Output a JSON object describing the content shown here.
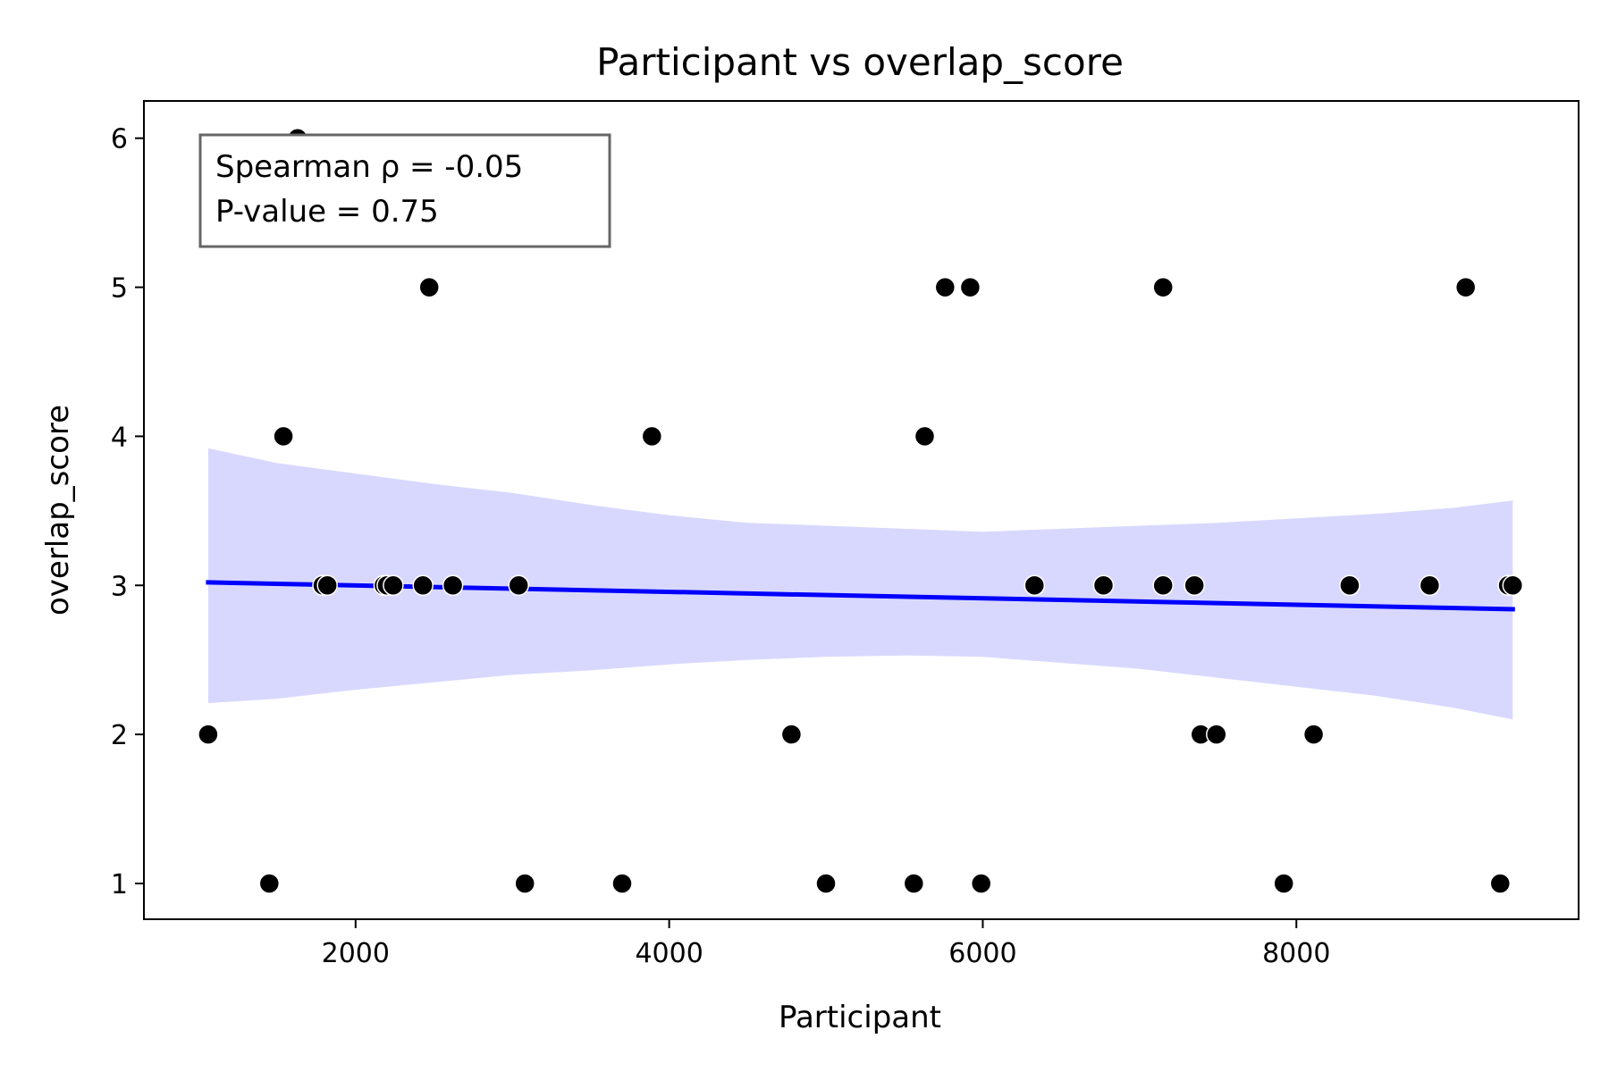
{
  "chart_data": {
    "type": "scatter",
    "title": "Participant vs overlap_score",
    "xlabel": "Participant",
    "ylabel": "overlap_score",
    "xlim": [
      650,
      9800
    ],
    "ylim": [
      0.76,
      6.25
    ],
    "xticks": [
      2000,
      4000,
      6000,
      8000
    ],
    "yticks": [
      1,
      2,
      3,
      4,
      5,
      6
    ],
    "grid": false,
    "colors": {
      "points": "#000000",
      "fit_line": "#0000ff",
      "ci_band": "#d8d8ff",
      "annotation_border": "#666666"
    },
    "annotation": {
      "lines": [
        "Spearman ρ = -0.05",
        "P-value = 0.75"
      ],
      "placement": "top-left"
    },
    "points": [
      {
        "x": 1060,
        "y": 2
      },
      {
        "x": 1450,
        "y": 1
      },
      {
        "x": 1540,
        "y": 4
      },
      {
        "x": 1630,
        "y": 6
      },
      {
        "x": 1790,
        "y": 3
      },
      {
        "x": 1820,
        "y": 3
      },
      {
        "x": 2180,
        "y": 3
      },
      {
        "x": 2200,
        "y": 3
      },
      {
        "x": 2240,
        "y": 3
      },
      {
        "x": 2430,
        "y": 3
      },
      {
        "x": 2470,
        "y": 5
      },
      {
        "x": 2620,
        "y": 3
      },
      {
        "x": 3040,
        "y": 3
      },
      {
        "x": 3080,
        "y": 1
      },
      {
        "x": 3700,
        "y": 1
      },
      {
        "x": 3890,
        "y": 4
      },
      {
        "x": 4780,
        "y": 2
      },
      {
        "x": 5000,
        "y": 1
      },
      {
        "x": 5560,
        "y": 1
      },
      {
        "x": 5630,
        "y": 4
      },
      {
        "x": 5760,
        "y": 5
      },
      {
        "x": 5920,
        "y": 5
      },
      {
        "x": 5990,
        "y": 1
      },
      {
        "x": 6330,
        "y": 3
      },
      {
        "x": 6770,
        "y": 3
      },
      {
        "x": 7150,
        "y": 3
      },
      {
        "x": 7150,
        "y": 5
      },
      {
        "x": 7350,
        "y": 3
      },
      {
        "x": 7390,
        "y": 2
      },
      {
        "x": 7490,
        "y": 2
      },
      {
        "x": 7920,
        "y": 1
      },
      {
        "x": 8110,
        "y": 2
      },
      {
        "x": 8340,
        "y": 3
      },
      {
        "x": 8850,
        "y": 3
      },
      {
        "x": 9080,
        "y": 5
      },
      {
        "x": 9300,
        "y": 1
      },
      {
        "x": 9350,
        "y": 3
      },
      {
        "x": 9380,
        "y": 3
      }
    ],
    "fit_line": {
      "x": [
        1060,
        9380
      ],
      "y": [
        3.02,
        2.84
      ]
    },
    "ci_band": {
      "x": [
        1060,
        1500,
        2000,
        2500,
        3000,
        3500,
        4000,
        4500,
        5000,
        5500,
        6000,
        6500,
        7000,
        7500,
        8000,
        8500,
        9000,
        9380
      ],
      "upper": [
        3.92,
        3.82,
        3.75,
        3.68,
        3.62,
        3.54,
        3.47,
        3.42,
        3.4,
        3.38,
        3.36,
        3.38,
        3.4,
        3.42,
        3.45,
        3.48,
        3.52,
        3.57
      ],
      "lower": [
        2.21,
        2.24,
        2.3,
        2.35,
        2.4,
        2.43,
        2.47,
        2.5,
        2.52,
        2.53,
        2.52,
        2.48,
        2.44,
        2.38,
        2.32,
        2.26,
        2.18,
        2.1
      ]
    }
  }
}
